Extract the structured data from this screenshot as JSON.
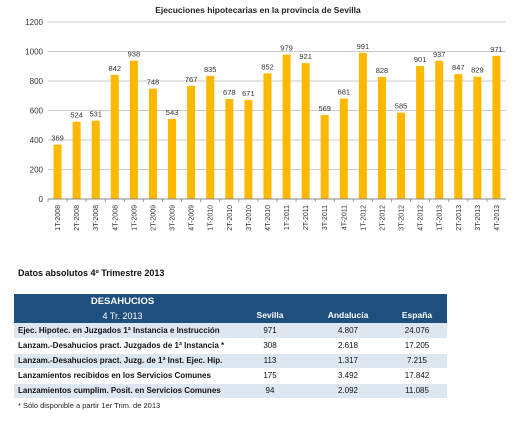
{
  "chart_data": {
    "type": "bar",
    "title": "Ejecuciones hipotecarias en la provincia de Sevilla",
    "xlabel": "",
    "ylabel": "",
    "ylim": [
      0,
      1200
    ],
    "yticks": [
      0,
      200,
      400,
      600,
      800,
      1000,
      1200
    ],
    "grid": true,
    "bar_color": "#FFB800",
    "categories": [
      "1T-2008",
      "2T-2008",
      "3T-2008",
      "4T-2008",
      "1T-2009",
      "2T-2009",
      "3T-2009",
      "4T-2009",
      "1T-2010",
      "2T-2010",
      "3T-2010",
      "4T-2010",
      "1T-2011",
      "2T-2011",
      "3T-2011",
      "4T-2011",
      "1T-2012",
      "2T-2012",
      "3T-2012",
      "4T-2012",
      "1T-2013",
      "2T-2013",
      "3T-2013",
      "4T-2013"
    ],
    "values": [
      369,
      524,
      531,
      842,
      938,
      748,
      543,
      767,
      835,
      678,
      671,
      852,
      979,
      921,
      569,
      681,
      991,
      828,
      585,
      901,
      937,
      847,
      829,
      971
    ]
  },
  "section_title": "Datos absolutos 4º Trimestre 2013",
  "table": {
    "title": "DESAHUCIOS",
    "subtitle": "4 Tr. 2013",
    "columns": [
      "Sevilla",
      "Andalucía",
      "España"
    ],
    "rows": [
      {
        "label": "Ejec. Hipotec. en Juzgados 1ª Instancia e Instrucción",
        "values": [
          "971",
          "4.807",
          "24.076"
        ]
      },
      {
        "label": "Lanzam.-Desahucios pract. Juzgados de 1ª Instancia *",
        "values": [
          "308",
          "2.618",
          "17.205"
        ]
      },
      {
        "label": "Lanzam.-Desahucios pract. Juzg. de 1ª Inst. Ejec. Hip.",
        "values": [
          "113",
          "1.317",
          "7.215"
        ]
      },
      {
        "label": "Lanzamientos recibidos en los Servicios Comunes",
        "values": [
          "175",
          "3.492",
          "17.842"
        ]
      },
      {
        "label": "Lanzamientos cumplim. Posit. en Servicios Comunes",
        "values": [
          "94",
          "2.092",
          "11.085"
        ]
      }
    ],
    "header_color": "#1F4F7F",
    "stripe_color": "#DDE7F2"
  },
  "footnote": "* Sólo disponible a partir 1er Trim. de 2013"
}
